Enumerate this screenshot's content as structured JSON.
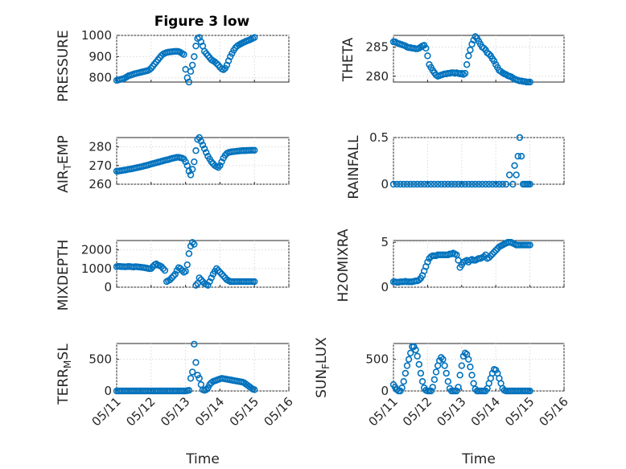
{
  "figure": {
    "title": "Figure 3 low",
    "marker_color": "#0072BD",
    "background": "#ffffff"
  },
  "chart_data": [
    {
      "type": "scatter",
      "panel": "top-left",
      "title": "Figure 3 low",
      "ylabel": "PRESSURE",
      "ylim": [
        780,
        1000
      ],
      "yticks": [
        800,
        900,
        1000
      ],
      "ytick_labels": [
        "800",
        "900",
        "1000"
      ],
      "xlim": [
        0,
        5
      ],
      "x_unit": "days since 05/11",
      "x": [
        0.0,
        0.05,
        0.1,
        0.15,
        0.2,
        0.25,
        0.3,
        0.35,
        0.4,
        0.45,
        0.5,
        0.55,
        0.6,
        0.65,
        0.7,
        0.75,
        0.8,
        0.85,
        0.9,
        0.95,
        1.0,
        1.05,
        1.1,
        1.15,
        1.2,
        1.25,
        1.3,
        1.35,
        1.4,
        1.45,
        1.5,
        1.55,
        1.6,
        1.65,
        1.7,
        1.75,
        1.8,
        1.85,
        1.9,
        1.95,
        2.0,
        2.05,
        2.1,
        2.15,
        2.2,
        2.25,
        2.3,
        2.35,
        2.4,
        2.45,
        2.5,
        2.55,
        2.6,
        2.65,
        2.7,
        2.75,
        2.8,
        2.85,
        2.9,
        2.95,
        3.0,
        3.05,
        3.1,
        3.15,
        3.2,
        3.25,
        3.3,
        3.35,
        3.4,
        3.45,
        3.5,
        3.55,
        3.6,
        3.65,
        3.7,
        3.75,
        3.8,
        3.85,
        3.9,
        3.95,
        4.0
      ],
      "y": [
        788,
        790,
        792,
        794,
        796,
        800,
        805,
        810,
        812,
        815,
        818,
        820,
        822,
        824,
        826,
        828,
        830,
        832,
        834,
        838,
        845,
        855,
        865,
        875,
        885,
        895,
        905,
        912,
        916,
        919,
        921,
        922,
        923,
        924,
        925,
        925,
        924,
        920,
        915,
        910,
        840,
        800,
        780,
        830,
        860,
        900,
        950,
        985,
        990,
        970,
        950,
        925,
        915,
        905,
        895,
        885,
        880,
        875,
        868,
        860,
        850,
        842,
        838,
        845,
        860,
        880,
        900,
        915,
        930,
        942,
        950,
        955,
        960,
        964,
        968,
        972,
        975,
        978,
        982,
        986,
        990
      ]
    },
    {
      "type": "scatter",
      "panel": "top-right",
      "ylabel": "THETA",
      "ylim": [
        279,
        287
      ],
      "yticks": [
        280,
        285
      ],
      "ytick_labels": [
        "280",
        "285"
      ],
      "xlim": [
        0,
        5
      ],
      "x_unit": "days since 05/11",
      "x": [
        0.0,
        0.05,
        0.1,
        0.15,
        0.2,
        0.25,
        0.3,
        0.35,
        0.4,
        0.45,
        0.5,
        0.55,
        0.6,
        0.65,
        0.7,
        0.75,
        0.8,
        0.85,
        0.9,
        0.95,
        1.0,
        1.05,
        1.1,
        1.15,
        1.2,
        1.25,
        1.3,
        1.35,
        1.4,
        1.45,
        1.5,
        1.55,
        1.6,
        1.65,
        1.7,
        1.75,
        1.8,
        1.85,
        1.9,
        1.95,
        2.0,
        2.05,
        2.1,
        2.15,
        2.2,
        2.25,
        2.3,
        2.35,
        2.4,
        2.45,
        2.5,
        2.55,
        2.6,
        2.65,
        2.7,
        2.75,
        2.8,
        2.85,
        2.9,
        2.95,
        3.0,
        3.05,
        3.1,
        3.15,
        3.2,
        3.25,
        3.3,
        3.35,
        3.4,
        3.45,
        3.5,
        3.55,
        3.6,
        3.65,
        3.7,
        3.75,
        3.8,
        3.85,
        3.9,
        3.95,
        4.0
      ],
      "y": [
        285.9,
        285.9,
        285.7,
        285.6,
        285.5,
        285.4,
        285.3,
        285.2,
        285.0,
        284.9,
        284.9,
        284.8,
        284.8,
        284.7,
        284.7,
        284.8,
        285.0,
        285.2,
        285.3,
        284.8,
        283.5,
        282.0,
        281.5,
        281.0,
        280.6,
        280.2,
        280.0,
        280.1,
        280.2,
        280.3,
        280.4,
        280.4,
        280.5,
        280.5,
        280.6,
        280.6,
        280.5,
        280.6,
        280.5,
        280.4,
        280.5,
        280.3,
        280.5,
        282.0,
        283.5,
        284.5,
        285.5,
        286.2,
        286.8,
        286.5,
        286.0,
        285.5,
        285.0,
        284.8,
        284.5,
        284.0,
        283.8,
        283.5,
        283.0,
        282.6,
        282.0,
        281.5,
        281.0,
        280.8,
        280.6,
        280.4,
        280.3,
        280.1,
        280.0,
        279.9,
        279.7,
        279.5,
        279.4,
        279.3,
        279.2,
        279.2,
        279.1,
        279.1,
        279.0,
        279.0,
        279.0
      ]
    },
    {
      "type": "scatter",
      "panel": "row2-left",
      "ylabel": "AIR_TEMP",
      "ylim": [
        260,
        285
      ],
      "yticks": [
        260,
        270,
        280
      ],
      "ytick_labels": [
        "260",
        "270",
        "280"
      ],
      "xlim": [
        0,
        5
      ],
      "x_unit": "days since 05/11",
      "x": [
        0.0,
        0.05,
        0.1,
        0.15,
        0.2,
        0.25,
        0.3,
        0.35,
        0.4,
        0.45,
        0.5,
        0.55,
        0.6,
        0.65,
        0.7,
        0.75,
        0.8,
        0.85,
        0.9,
        0.95,
        1.0,
        1.05,
        1.1,
        1.15,
        1.2,
        1.25,
        1.3,
        1.35,
        1.4,
        1.45,
        1.5,
        1.55,
        1.6,
        1.65,
        1.7,
        1.75,
        1.8,
        1.85,
        1.9,
        1.95,
        2.0,
        2.05,
        2.1,
        2.15,
        2.2,
        2.25,
        2.3,
        2.35,
        2.4,
        2.45,
        2.5,
        2.55,
        2.6,
        2.65,
        2.7,
        2.75,
        2.8,
        2.85,
        2.9,
        2.95,
        3.0,
        3.05,
        3.1,
        3.15,
        3.2,
        3.25,
        3.3,
        3.35,
        3.4,
        3.45,
        3.5,
        3.55,
        3.6,
        3.65,
        3.7,
        3.75,
        3.8,
        3.85,
        3.9,
        3.95,
        4.0
      ],
      "y": [
        267.0,
        267.0,
        267.2,
        267.3,
        267.5,
        267.6,
        267.8,
        268.0,
        268.1,
        268.3,
        268.5,
        268.7,
        268.9,
        269.1,
        269.3,
        269.5,
        269.8,
        270.0,
        270.2,
        270.5,
        270.8,
        271.0,
        271.3,
        271.5,
        271.8,
        272.0,
        272.3,
        272.5,
        272.8,
        273.0,
        273.2,
        273.5,
        273.8,
        274.0,
        274.2,
        274.4,
        274.4,
        274.2,
        274.0,
        273.5,
        272.0,
        270.0,
        267.0,
        265.0,
        268.0,
        272.0,
        278.0,
        284.0,
        285.0,
        283.0,
        281.0,
        279.0,
        277.0,
        275.0,
        273.5,
        272.0,
        271.0,
        270.0,
        269.5,
        269.0,
        270.0,
        272.0,
        274.0,
        275.5,
        276.5,
        277.0,
        277.2,
        277.4,
        277.5,
        277.6,
        277.7,
        277.8,
        277.9,
        278.0,
        278.0,
        278.0,
        278.1,
        278.1,
        278.2,
        278.2,
        278.2
      ]
    },
    {
      "type": "scatter",
      "panel": "row2-right",
      "ylabel": "RAINFALL",
      "ylim": [
        0,
        0.5
      ],
      "yticks": [
        0,
        0.5
      ],
      "ytick_labels": [
        "0",
        "0.5"
      ],
      "xlim": [
        0,
        5
      ],
      "x_unit": "days since 05/11",
      "x": [
        0.0,
        0.1,
        0.2,
        0.3,
        0.4,
        0.5,
        0.6,
        0.7,
        0.8,
        0.9,
        1.0,
        1.1,
        1.2,
        1.3,
        1.4,
        1.5,
        1.6,
        1.7,
        1.8,
        1.9,
        2.0,
        2.1,
        2.2,
        2.3,
        2.4,
        2.5,
        2.6,
        2.7,
        2.8,
        2.9,
        3.0,
        3.1,
        3.2,
        3.3,
        3.4,
        3.5,
        3.55,
        3.6,
        3.65,
        3.7,
        3.75,
        3.8,
        3.85,
        3.9,
        3.95,
        4.0
      ],
      "y": [
        0,
        0,
        0,
        0,
        0,
        0,
        0,
        0,
        0,
        0,
        0,
        0,
        0,
        0,
        0,
        0,
        0,
        0,
        0,
        0,
        0,
        0,
        0,
        0,
        0,
        0,
        0,
        0,
        0,
        0,
        0,
        0,
        0,
        0,
        0.1,
        0,
        0.2,
        0.1,
        0.3,
        0.5,
        0.3,
        0,
        0,
        0,
        0,
        0
      ]
    },
    {
      "type": "scatter",
      "panel": "row3-left",
      "ylabel": "MIXDEPTH",
      "ylim": [
        0,
        2500
      ],
      "yticks": [
        0,
        1000,
        2000
      ],
      "ytick_labels": [
        "0",
        "1000",
        "2000"
      ],
      "xlim": [
        0,
        5
      ],
      "x_unit": "days since 05/11",
      "x": [
        0.0,
        0.05,
        0.1,
        0.15,
        0.2,
        0.25,
        0.3,
        0.35,
        0.4,
        0.45,
        0.5,
        0.55,
        0.6,
        0.65,
        0.7,
        0.75,
        0.8,
        0.85,
        0.9,
        0.95,
        1.0,
        1.05,
        1.1,
        1.15,
        1.2,
        1.25,
        1.3,
        1.35,
        1.4,
        1.45,
        1.5,
        1.55,
        1.6,
        1.65,
        1.7,
        1.75,
        1.8,
        1.85,
        1.9,
        1.95,
        2.0,
        2.05,
        2.1,
        2.15,
        2.2,
        2.25,
        2.3,
        2.35,
        2.4,
        2.45,
        2.5,
        2.55,
        2.6,
        2.65,
        2.7,
        2.75,
        2.8,
        2.85,
        2.9,
        2.95,
        3.0,
        3.05,
        3.1,
        3.15,
        3.2,
        3.25,
        3.3,
        3.35,
        3.4,
        3.45,
        3.5,
        3.55,
        3.6,
        3.65,
        3.7,
        3.75,
        3.8,
        3.85,
        3.9,
        3.95,
        4.0
      ],
      "y": [
        1100,
        1120,
        1110,
        1100,
        1100,
        1090,
        1100,
        1110,
        1100,
        1090,
        1080,
        1100,
        1090,
        1080,
        1070,
        1060,
        1050,
        1030,
        1010,
        990,
        1000,
        1100,
        1200,
        1250,
        1180,
        1150,
        1100,
        1000,
        900,
        300,
        350,
        400,
        500,
        600,
        700,
        900,
        1050,
        1000,
        900,
        800,
        850,
        1200,
        1800,
        2200,
        2400,
        2300,
        100,
        200,
        500,
        400,
        300,
        200,
        150,
        100,
        300,
        500,
        700,
        850,
        1000,
        900,
        800,
        700,
        600,
        500,
        400,
        350,
        300,
        300,
        300,
        300,
        300,
        300,
        300,
        300,
        300,
        300,
        300,
        300,
        300,
        300,
        300
      ]
    },
    {
      "type": "scatter",
      "panel": "row3-right",
      "ylabel": "H2OMIXRA",
      "ylim": [
        0,
        5.2
      ],
      "yticks": [
        0,
        5
      ],
      "ytick_labels": [
        "0",
        "5"
      ],
      "xlim": [
        0,
        5
      ],
      "x_unit": "days since 05/11",
      "x": [
        0.0,
        0.05,
        0.1,
        0.15,
        0.2,
        0.25,
        0.3,
        0.35,
        0.4,
        0.45,
        0.5,
        0.55,
        0.6,
        0.65,
        0.7,
        0.75,
        0.8,
        0.85,
        0.9,
        0.95,
        1.0,
        1.05,
        1.1,
        1.15,
        1.2,
        1.25,
        1.3,
        1.35,
        1.4,
        1.45,
        1.5,
        1.55,
        1.6,
        1.65,
        1.7,
        1.75,
        1.8,
        1.85,
        1.9,
        1.95,
        2.0,
        2.05,
        2.1,
        2.15,
        2.2,
        2.25,
        2.3,
        2.35,
        2.4,
        2.45,
        2.5,
        2.55,
        2.6,
        2.65,
        2.7,
        2.75,
        2.8,
        2.85,
        2.9,
        2.95,
        3.0,
        3.05,
        3.1,
        3.15,
        3.2,
        3.25,
        3.3,
        3.35,
        3.4,
        3.45,
        3.5,
        3.55,
        3.6,
        3.65,
        3.7,
        3.75,
        3.8,
        3.85,
        3.9,
        3.95,
        4.0
      ],
      "y": [
        0.6,
        0.6,
        0.55,
        0.55,
        0.6,
        0.6,
        0.6,
        0.65,
        0.6,
        0.6,
        0.6,
        0.6,
        0.65,
        0.7,
        0.7,
        0.8,
        1.0,
        1.3,
        1.8,
        2.3,
        2.8,
        3.2,
        3.4,
        3.5,
        3.5,
        3.5,
        3.6,
        3.6,
        3.6,
        3.6,
        3.6,
        3.6,
        3.6,
        3.7,
        3.7,
        3.8,
        3.7,
        3.6,
        3.0,
        2.2,
        2.5,
        2.8,
        2.9,
        3.0,
        2.8,
        3.0,
        3.1,
        3.0,
        3.0,
        3.1,
        3.2,
        3.2,
        3.3,
        3.4,
        3.6,
        3.2,
        3.3,
        3.5,
        3.7,
        3.9,
        4.1,
        4.3,
        4.5,
        4.6,
        4.7,
        4.8,
        4.9,
        5.0,
        5.0,
        5.0,
        4.9,
        4.8,
        4.7,
        4.7,
        4.7,
        4.7,
        4.7,
        4.7,
        4.7,
        4.7,
        4.7
      ]
    },
    {
      "type": "scatter",
      "panel": "bottom-left",
      "ylabel": "TERR_MSL",
      "xlabel": "Time",
      "ylim": [
        0,
        750
      ],
      "yticks": [
        0,
        500
      ],
      "ytick_labels": [
        "0",
        "500"
      ],
      "xlim": [
        0,
        5
      ],
      "x_unit": "days since 05/11",
      "xtick_labels": [
        "05/11",
        "05/12",
        "05/13",
        "05/14",
        "05/15",
        "05/16"
      ],
      "x": [
        0.0,
        0.05,
        0.1,
        0.15,
        0.2,
        0.25,
        0.3,
        0.35,
        0.4,
        0.45,
        0.5,
        0.55,
        0.6,
        0.65,
        0.7,
        0.75,
        0.8,
        0.85,
        0.9,
        0.95,
        1.0,
        1.05,
        1.1,
        1.15,
        1.2,
        1.25,
        1.3,
        1.35,
        1.4,
        1.45,
        1.5,
        1.55,
        1.6,
        1.65,
        1.7,
        1.75,
        1.8,
        1.85,
        1.9,
        1.95,
        2.0,
        2.05,
        2.1,
        2.15,
        2.2,
        2.25,
        2.3,
        2.35,
        2.4,
        2.45,
        2.5,
        2.55,
        2.6,
        2.65,
        2.7,
        2.75,
        2.8,
        2.85,
        2.9,
        2.95,
        3.0,
        3.05,
        3.1,
        3.15,
        3.2,
        3.25,
        3.3,
        3.35,
        3.4,
        3.45,
        3.5,
        3.55,
        3.6,
        3.65,
        3.7,
        3.75,
        3.8,
        3.85,
        3.9,
        3.95,
        4.0
      ],
      "y": [
        0,
        0,
        0,
        0,
        0,
        0,
        0,
        0,
        0,
        0,
        0,
        0,
        0,
        0,
        0,
        0,
        0,
        0,
        0,
        0,
        0,
        0,
        0,
        0,
        0,
        0,
        0,
        0,
        0,
        0,
        0,
        0,
        0,
        0,
        0,
        0,
        0,
        0,
        0,
        0,
        0,
        5,
        10,
        200,
        300,
        740,
        450,
        250,
        200,
        100,
        20,
        10,
        20,
        50,
        100,
        130,
        150,
        160,
        170,
        180,
        190,
        200,
        195,
        190,
        185,
        180,
        175,
        170,
        165,
        160,
        155,
        150,
        145,
        140,
        130,
        110,
        90,
        70,
        50,
        30,
        20
      ]
    },
    {
      "type": "scatter",
      "panel": "bottom-right",
      "ylabel": "SUN_FLUX",
      "xlabel": "Time",
      "ylim": [
        0,
        750
      ],
      "yticks": [
        0,
        500
      ],
      "ytick_labels": [
        "0",
        "500"
      ],
      "xlim": [
        0,
        5
      ],
      "x_unit": "days since 05/11",
      "xtick_labels": [
        "05/11",
        "05/12",
        "05/13",
        "05/14",
        "05/15",
        "05/16"
      ],
      "x": [
        0.0,
        0.05,
        0.1,
        0.15,
        0.2,
        0.25,
        0.3,
        0.35,
        0.4,
        0.45,
        0.5,
        0.55,
        0.6,
        0.65,
        0.7,
        0.75,
        0.8,
        0.85,
        0.9,
        0.95,
        1.0,
        1.05,
        1.1,
        1.15,
        1.2,
        1.25,
        1.3,
        1.35,
        1.4,
        1.45,
        1.5,
        1.55,
        1.6,
        1.65,
        1.7,
        1.75,
        1.8,
        1.85,
        1.9,
        1.95,
        2.0,
        2.05,
        2.1,
        2.15,
        2.2,
        2.25,
        2.3,
        2.35,
        2.4,
        2.45,
        2.5,
        2.55,
        2.6,
        2.65,
        2.7,
        2.75,
        2.8,
        2.85,
        2.9,
        2.95,
        3.0,
        3.05,
        3.1,
        3.15,
        3.2,
        3.25,
        3.3,
        3.35,
        3.4,
        3.45,
        3.5,
        3.55,
        3.6,
        3.65,
        3.7,
        3.75,
        3.8,
        3.85,
        3.9,
        3.95,
        4.0
      ],
      "y": [
        100,
        60,
        20,
        0,
        0,
        50,
        150,
        280,
        400,
        500,
        600,
        700,
        700,
        650,
        550,
        420,
        280,
        150,
        50,
        10,
        0,
        0,
        0,
        60,
        180,
        300,
        400,
        480,
        530,
        500,
        400,
        280,
        150,
        40,
        0,
        0,
        0,
        0,
        60,
        250,
        400,
        550,
        600,
        580,
        500,
        380,
        250,
        120,
        30,
        0,
        0,
        0,
        0,
        0,
        0,
        40,
        120,
        200,
        280,
        340,
        330,
        280,
        200,
        120,
        40,
        10,
        0,
        0,
        0,
        0,
        0,
        0,
        0,
        0,
        0,
        0,
        0,
        0,
        0,
        0,
        0
      ]
    }
  ]
}
